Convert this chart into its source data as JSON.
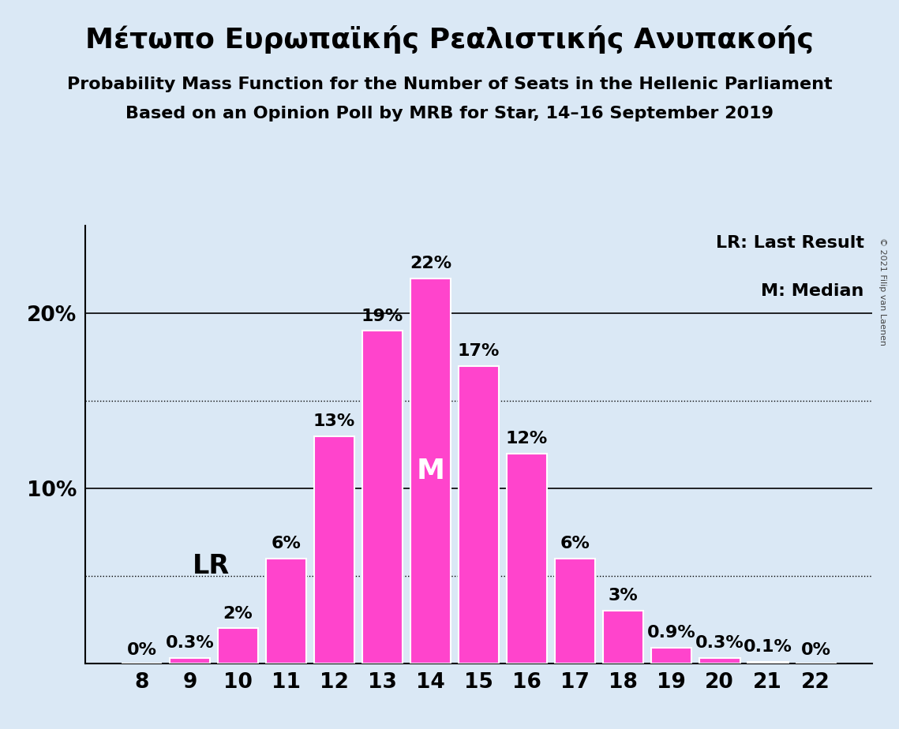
{
  "title": "Μέτωπο Ευρωπαϊκής Ρεαλιστικής Ανυπακοής",
  "subtitle1": "Probability Mass Function for the Number of Seats in the Hellenic Parliament",
  "subtitle2": "Based on an Opinion Poll by MRB for Star, 14–16 September 2019",
  "copyright": "© 2021 Filip van Laenen",
  "seats": [
    8,
    9,
    10,
    11,
    12,
    13,
    14,
    15,
    16,
    17,
    18,
    19,
    20,
    21,
    22
  ],
  "probabilities": [
    0.0,
    0.3,
    2.0,
    6.0,
    13.0,
    19.0,
    22.0,
    17.0,
    12.0,
    6.0,
    3.0,
    0.9,
    0.3,
    0.1,
    0.0
  ],
  "labels": [
    "0%",
    "0.3%",
    "2%",
    "6%",
    "13%",
    "19%",
    "22%",
    "17%",
    "12%",
    "6%",
    "3%",
    "0.9%",
    "0.3%",
    "0.1%",
    "0%"
  ],
  "bar_color": "#FF44CC",
  "background_color": "#DAE8F5",
  "text_color": "#000000",
  "bar_edge_color": "#FFFFFF",
  "median_seat": 14,
  "median_label": "M",
  "lr_seat": 10,
  "lr_label": "LR",
  "legend_lr": "LR: Last Result",
  "legend_m": "M: Median",
  "ylim": [
    0,
    25
  ],
  "solid_yticks": [
    10,
    20
  ],
  "dotted_yticks": [
    5,
    15
  ],
  "title_fontsize": 26,
  "subtitle_fontsize": 16,
  "label_fontsize": 16,
  "tick_fontsize": 19,
  "median_fontsize": 26,
  "lr_fontsize": 24,
  "legend_fontsize": 16
}
